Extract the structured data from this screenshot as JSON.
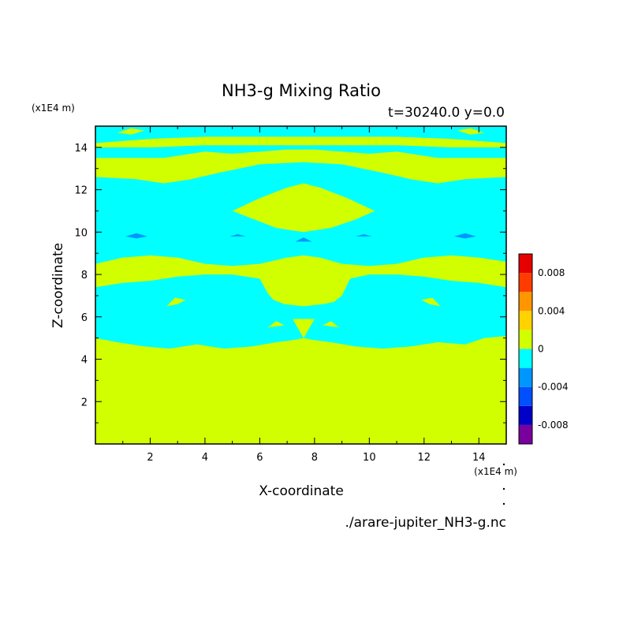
{
  "chart_data": {
    "type": "heatmap",
    "title": "NH3-g Mixing Ratio",
    "subtitle": "t=30240.0 y=0.0",
    "xlabel": "X-coordinate",
    "ylabel": "Z-coordinate",
    "x_unit": "(x1E4 m)",
    "y_unit": "(x1E4 m)",
    "source": "./arare-jupiter_NH3-g.nc",
    "xlim": [
      0,
      15
    ],
    "ylim": [
      0,
      15
    ],
    "x_ticks": [
      2,
      4,
      6,
      8,
      10,
      12,
      14
    ],
    "y_ticks": [
      2,
      4,
      6,
      8,
      10,
      12,
      14
    ],
    "x_tick_labels": [
      "2",
      "4",
      "6",
      "8",
      "10",
      "12",
      "14"
    ],
    "y_tick_labels": [
      "2",
      "4",
      "6",
      "8",
      "10",
      "12",
      "14"
    ],
    "colorbar": {
      "levels": [
        -0.01,
        -0.008,
        -0.006,
        -0.004,
        -0.002,
        0,
        0.002,
        0.004,
        0.006,
        0.008,
        0.01
      ],
      "colors": [
        "#7a009e",
        "#0000c8",
        "#0050ff",
        "#0096ff",
        "#00ffff",
        "#d2ff00",
        "#ffd200",
        "#ff9600",
        "#ff3c00",
        "#e60000",
        "#ffaaaa"
      ],
      "labels": [
        {
          "value": 0.008,
          "text": "0.008"
        },
        {
          "value": 0.004,
          "text": "0.004"
        },
        {
          "value": 0,
          "text": "0"
        },
        {
          "value": -0.004,
          "text": "-0.004"
        },
        {
          "value": -0.008,
          "text": "-0.008"
        }
      ]
    },
    "field": {
      "background_level_color": "#00ffff",
      "regions": [
        {
          "level_color": "#d2ff00",
          "points": [
            [
              0,
              0
            ],
            [
              15,
              0
            ],
            [
              15,
              5.1
            ],
            [
              14.2,
              5.0
            ],
            [
              13.5,
              4.7
            ],
            [
              12.5,
              4.8
            ],
            [
              11.5,
              4.6
            ],
            [
              10.5,
              4.5
            ],
            [
              9.5,
              4.6
            ],
            [
              8.6,
              4.8
            ],
            [
              8.0,
              4.9
            ],
            [
              7.6,
              5.0
            ],
            [
              7.2,
              4.9
            ],
            [
              6.6,
              4.8
            ],
            [
              5.7,
              4.6
            ],
            [
              4.7,
              4.5
            ],
            [
              3.7,
              4.7
            ],
            [
              2.7,
              4.5
            ],
            [
              1.8,
              4.6
            ],
            [
              0.8,
              4.8
            ],
            [
              0,
              5.0
            ]
          ]
        },
        {
          "level_color": "#d2ff00",
          "points": [
            [
              0,
              8.5
            ],
            [
              1,
              8.8
            ],
            [
              2,
              8.9
            ],
            [
              3,
              8.8
            ],
            [
              4,
              8.5
            ],
            [
              5,
              8.4
            ],
            [
              6,
              8.5
            ],
            [
              7,
              8.8
            ],
            [
              7.6,
              8.9
            ],
            [
              8.2,
              8.8
            ],
            [
              9,
              8.5
            ],
            [
              10,
              8.4
            ],
            [
              11,
              8.5
            ],
            [
              12,
              8.8
            ],
            [
              13,
              8.9
            ],
            [
              14,
              8.8
            ],
            [
              15,
              8.6
            ],
            [
              15,
              7.4
            ],
            [
              14,
              7.6
            ],
            [
              13,
              7.7
            ],
            [
              12,
              7.9
            ],
            [
              11,
              8.0
            ],
            [
              10,
              8.0
            ],
            [
              9.3,
              7.8
            ],
            [
              9,
              7.0
            ],
            [
              8.7,
              6.7
            ],
            [
              8.3,
              6.6
            ],
            [
              7.6,
              6.5
            ],
            [
              6.9,
              6.6
            ],
            [
              6.5,
              6.8
            ],
            [
              6.3,
              7.1
            ],
            [
              6,
              7.8
            ],
            [
              5,
              8.0
            ],
            [
              4,
              8.0
            ],
            [
              3,
              7.9
            ],
            [
              2,
              7.7
            ],
            [
              1,
              7.6
            ],
            [
              0,
              7.4
            ]
          ]
        },
        {
          "level_color": "#d2ff00",
          "points": [
            [
              2.6,
              6.5
            ],
            [
              2.9,
              6.9
            ],
            [
              3.3,
              6.8
            ],
            [
              3.0,
              6.6
            ]
          ]
        },
        {
          "level_color": "#d2ff00",
          "points": [
            [
              12.6,
              6.5
            ],
            [
              12.3,
              6.9
            ],
            [
              11.9,
              6.8
            ],
            [
              12.2,
              6.6
            ]
          ]
        },
        {
          "level_color": "#d2ff00",
          "points": [
            [
              6.3,
              5.5
            ],
            [
              6.6,
              5.8
            ],
            [
              6.9,
              5.6
            ]
          ]
        },
        {
          "level_color": "#d2ff00",
          "points": [
            [
              8.3,
              5.6
            ],
            [
              8.6,
              5.8
            ],
            [
              8.9,
              5.5
            ]
          ]
        },
        {
          "level_color": "#d2ff00",
          "points": [
            [
              7.2,
              5.9
            ],
            [
              7.6,
              5.0
            ],
            [
              8.0,
              5.9
            ]
          ]
        },
        {
          "level_color": "#d2ff00",
          "points": [
            [
              5.0,
              11.0
            ],
            [
              6.0,
              11.6
            ],
            [
              7.0,
              12.1
            ],
            [
              7.6,
              12.3
            ],
            [
              8.2,
              12.1
            ],
            [
              9.2,
              11.6
            ],
            [
              10.2,
              11.0
            ],
            [
              9.5,
              10.6
            ],
            [
              8.6,
              10.2
            ],
            [
              7.6,
              10.0
            ],
            [
              6.6,
              10.2
            ],
            [
              5.8,
              10.6
            ]
          ]
        },
        {
          "level_color": "#d2ff00",
          "points": [
            [
              0,
              12.6
            ],
            [
              1.5,
              12.5
            ],
            [
              2.5,
              12.3
            ],
            [
              3.5,
              12.5
            ],
            [
              4.5,
              12.8
            ],
            [
              6,
              13.2
            ],
            [
              7.6,
              13.3
            ],
            [
              9,
              13.2
            ],
            [
              10.5,
              12.8
            ],
            [
              11.5,
              12.5
            ],
            [
              12.5,
              12.3
            ],
            [
              13.5,
              12.5
            ],
            [
              15,
              12.6
            ],
            [
              15,
              13.5
            ],
            [
              12.5,
              13.5
            ],
            [
              11,
              13.8
            ],
            [
              10,
              13.7
            ],
            [
              9,
              13.8
            ],
            [
              8,
              13.9
            ],
            [
              7.6,
              13.9
            ],
            [
              7,
              13.9
            ],
            [
              6,
              13.8
            ],
            [
              5,
              13.7
            ],
            [
              4,
              13.8
            ],
            [
              2.5,
              13.5
            ],
            [
              0,
              13.5
            ]
          ]
        },
        {
          "level_color": "#d2ff00",
          "points": [
            [
              0,
              14.2
            ],
            [
              2,
              14.4
            ],
            [
              4,
              14.5
            ],
            [
              6,
              14.5
            ],
            [
              7.6,
              14.5
            ],
            [
              9,
              14.5
            ],
            [
              11,
              14.5
            ],
            [
              13,
              14.4
            ],
            [
              15,
              14.2
            ],
            [
              15,
              14.0
            ],
            [
              13,
              14.0
            ],
            [
              11,
              14.1
            ],
            [
              9,
              14.1
            ],
            [
              7.6,
              14.1
            ],
            [
              6,
              14.1
            ],
            [
              4,
              14.1
            ],
            [
              2,
              14.0
            ],
            [
              0,
              14.0
            ]
          ]
        },
        {
          "level_color": "#d2ff00",
          "points": [
            [
              0.8,
              14.7
            ],
            [
              1.3,
              14.9
            ],
            [
              1.8,
              14.8
            ],
            [
              1.3,
              14.6
            ]
          ]
        },
        {
          "level_color": "#d2ff00",
          "points": [
            [
              14.2,
              14.7
            ],
            [
              13.7,
              14.9
            ],
            [
              13.2,
              14.8
            ],
            [
              13.7,
              14.6
            ]
          ]
        },
        {
          "level_color": "#0096ff",
          "points": [
            [
              1.1,
              9.8
            ],
            [
              1.5,
              9.95
            ],
            [
              1.9,
              9.8
            ],
            [
              1.5,
              9.7
            ]
          ]
        },
        {
          "level_color": "#0096ff",
          "points": [
            [
              13.9,
              9.8
            ],
            [
              13.5,
              9.95
            ],
            [
              13.1,
              9.8
            ],
            [
              13.5,
              9.7
            ]
          ]
        },
        {
          "level_color": "#0096ff",
          "points": [
            [
              7.3,
              9.55
            ],
            [
              7.6,
              9.75
            ],
            [
              7.9,
              9.55
            ]
          ]
        },
        {
          "level_color": "#0096ff",
          "points": [
            [
              4.9,
              9.8
            ],
            [
              5.2,
              9.9
            ],
            [
              5.5,
              9.8
            ]
          ]
        },
        {
          "level_color": "#0096ff",
          "points": [
            [
              10.1,
              9.8
            ],
            [
              9.8,
              9.9
            ],
            [
              9.5,
              9.8
            ]
          ]
        }
      ]
    }
  }
}
